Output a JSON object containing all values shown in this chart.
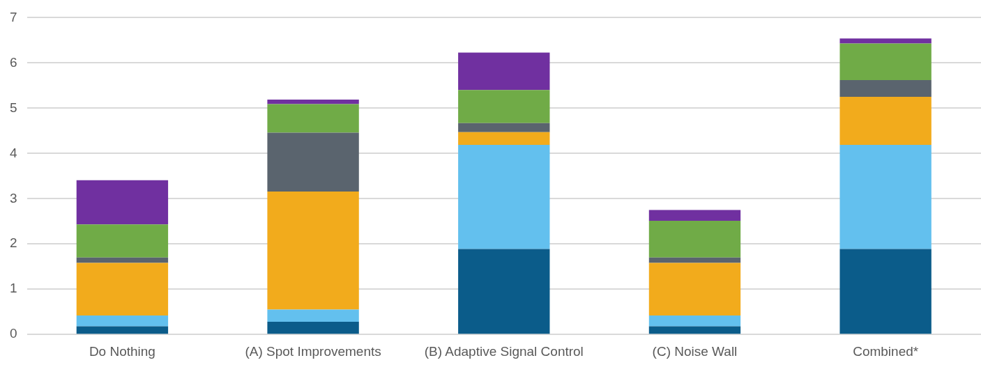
{
  "chart_data": {
    "type": "bar",
    "stacked": true,
    "categories": [
      "Do Nothing",
      "(A) Spot Improvements",
      "(B) Adaptive Signal Control",
      "(C) Noise Wall",
      "Combined*"
    ],
    "series": [
      {
        "color": "#0b5c8a",
        "values": [
          0.18,
          0.28,
          1.89,
          0.18,
          1.89
        ]
      },
      {
        "color": "#63c0ee",
        "values": [
          0.24,
          0.27,
          2.3,
          0.24,
          2.3
        ]
      },
      {
        "color": "#f2ab1c",
        "values": [
          1.16,
          2.61,
          0.28,
          1.16,
          1.06
        ]
      },
      {
        "color": "#5a646e",
        "values": [
          0.12,
          1.3,
          0.2,
          0.12,
          0.37
        ]
      },
      {
        "color": "#70ab47",
        "values": [
          0.73,
          0.63,
          0.73,
          0.81,
          0.81
        ]
      },
      {
        "color": "#7030a0",
        "values": [
          0.98,
          0.1,
          0.83,
          0.24,
          0.11
        ]
      }
    ],
    "ylim": [
      0,
      7
    ],
    "yticks": [
      0,
      1,
      2,
      3,
      4,
      5,
      6,
      7
    ],
    "grid": "y",
    "legend": false
  }
}
